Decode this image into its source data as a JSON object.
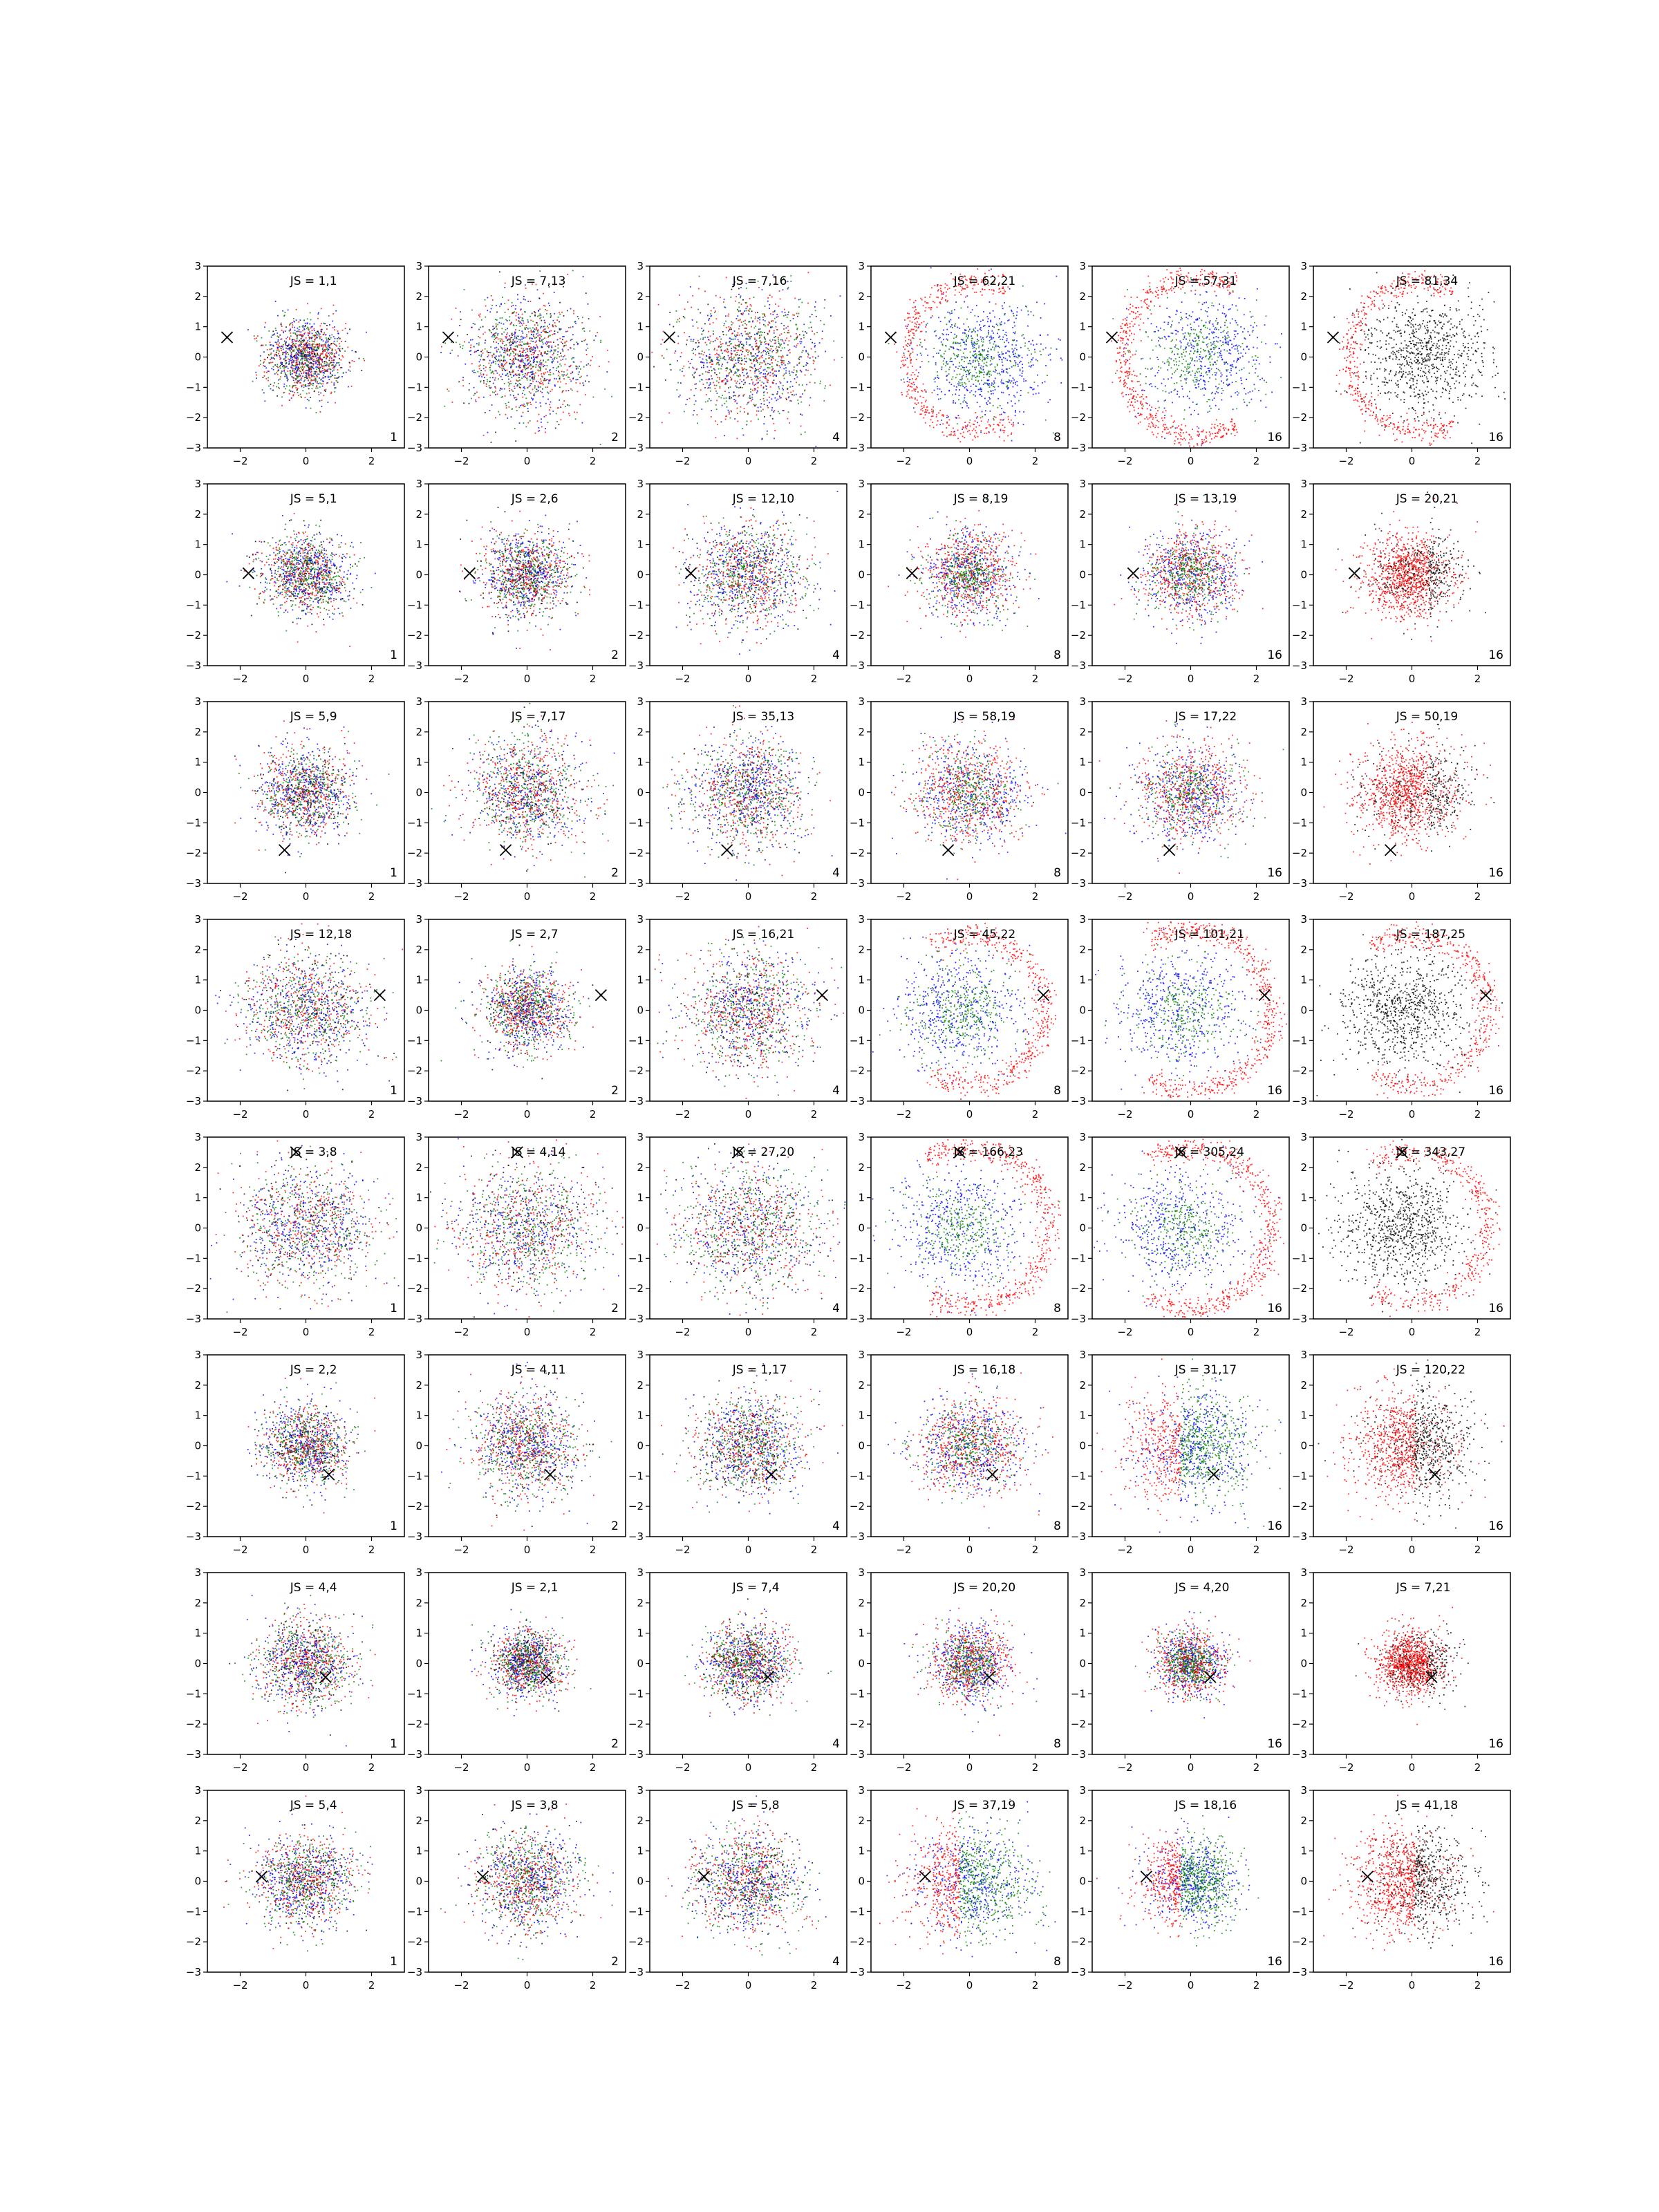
{
  "figure": {
    "rows": 8,
    "cols": 6,
    "colors": {
      "red": "#ff0000",
      "green": "#008000",
      "blue": "#0000ff",
      "black": "#000000",
      "marker": "#000000"
    }
  },
  "chart_data": {
    "type": "scatter",
    "axes_defaults": {
      "xlim": [
        -3,
        3
      ],
      "ylim": [
        -3,
        3
      ],
      "xticks": [
        -2,
        0,
        2
      ],
      "yticks": [
        -3,
        -2,
        -1,
        0,
        1,
        2,
        3
      ],
      "xtick_labels": [
        "−2",
        "0",
        "2"
      ],
      "ytick_labels": [
        "−3",
        "−2",
        "−1",
        "0",
        "1",
        "2",
        "3"
      ],
      "grid": false,
      "marker_symbol": "x"
    },
    "panels": [
      {
        "row": 1,
        "col": 1,
        "title": "JS = 1,1",
        "corner_label": "1",
        "marker": [
          -2.4,
          0.65
        ],
        "pattern": "mix3",
        "scale": 0.85
      },
      {
        "row": 1,
        "col": 2,
        "title": "JS = 7,13",
        "corner_label": "2",
        "marker": [
          -2.4,
          0.65
        ],
        "pattern": "mix3",
        "scale": 1.3
      },
      {
        "row": 1,
        "col": 3,
        "title": "JS = 7,16",
        "corner_label": "4",
        "marker": [
          -2.4,
          0.65
        ],
        "pattern": "mix3",
        "scale": 1.5
      },
      {
        "row": 1,
        "col": 4,
        "title": "JS = 62,21",
        "corner_label": "8",
        "marker": [
          -2.4,
          0.65
        ],
        "pattern": "crescent_rgb",
        "scale": 1.4
      },
      {
        "row": 1,
        "col": 5,
        "title": "JS = 57,31",
        "corner_label": "16",
        "marker": [
          -2.4,
          0.65
        ],
        "pattern": "crescent_rgb_strong",
        "scale": 1.4
      },
      {
        "row": 1,
        "col": 6,
        "title": "JS = 81,34",
        "corner_label": "16",
        "marker": [
          -2.4,
          0.65
        ],
        "pattern": "crescent_rk",
        "scale": 1.4
      },
      {
        "row": 2,
        "col": 1,
        "title": "JS = 5,1",
        "corner_label": "1",
        "marker": [
          -1.75,
          0.05
        ],
        "pattern": "mix3",
        "scale": 0.9
      },
      {
        "row": 2,
        "col": 2,
        "title": "JS = 2,6",
        "corner_label": "2",
        "marker": [
          -1.75,
          0.05
        ],
        "pattern": "mix3",
        "scale": 0.95
      },
      {
        "row": 2,
        "col": 3,
        "title": "JS = 12,10",
        "corner_label": "4",
        "marker": [
          -1.75,
          0.05
        ],
        "pattern": "mix3",
        "scale": 1.2
      },
      {
        "row": 2,
        "col": 4,
        "title": "JS = 8,19",
        "corner_label": "8",
        "marker": [
          -1.75,
          0.05
        ],
        "pattern": "blob_rgb",
        "scale": 1.0
      },
      {
        "row": 2,
        "col": 5,
        "title": "JS = 13,19",
        "corner_label": "16",
        "marker": [
          -1.75,
          0.05
        ],
        "pattern": "blob_rgb",
        "scale": 1.0
      },
      {
        "row": 2,
        "col": 6,
        "title": "JS = 20,21",
        "corner_label": "16",
        "marker": [
          -1.75,
          0.05
        ],
        "pattern": "blob_rk",
        "scale": 1.0
      },
      {
        "row": 3,
        "col": 1,
        "title": "JS = 5,9",
        "corner_label": "1",
        "marker": [
          -0.65,
          -1.9
        ],
        "pattern": "mix3",
        "scale": 1.0
      },
      {
        "row": 3,
        "col": 2,
        "title": "JS = 7,17",
        "corner_label": "2",
        "marker": [
          -0.65,
          -1.9
        ],
        "pattern": "mix3",
        "scale": 1.2
      },
      {
        "row": 3,
        "col": 3,
        "title": "JS = 35,13",
        "corner_label": "4",
        "marker": [
          -0.65,
          -1.9
        ],
        "pattern": "mix3",
        "scale": 1.25
      },
      {
        "row": 3,
        "col": 4,
        "title": "JS = 58,19",
        "corner_label": "8",
        "marker": [
          -0.65,
          -1.9
        ],
        "pattern": "blob_rgb",
        "scale": 1.2
      },
      {
        "row": 3,
        "col": 5,
        "title": "JS = 17,22",
        "corner_label": "16",
        "marker": [
          -0.65,
          -1.9
        ],
        "pattern": "blob_rgb",
        "scale": 1.1
      },
      {
        "row": 3,
        "col": 6,
        "title": "JS = 50,19",
        "corner_label": "16",
        "marker": [
          -0.65,
          -1.9
        ],
        "pattern": "blob_rk",
        "scale": 1.15
      },
      {
        "row": 4,
        "col": 1,
        "title": "JS = 12,18",
        "corner_label": "1",
        "marker": [
          2.25,
          0.5
        ],
        "pattern": "mix3",
        "scale": 1.3
      },
      {
        "row": 4,
        "col": 2,
        "title": "JS = 2,7",
        "corner_label": "2",
        "marker": [
          2.25,
          0.5
        ],
        "pattern": "mix3",
        "scale": 0.95
      },
      {
        "row": 4,
        "col": 3,
        "title": "JS = 16,21",
        "corner_label": "4",
        "marker": [
          2.25,
          0.5
        ],
        "pattern": "mix3",
        "scale": 1.35
      },
      {
        "row": 4,
        "col": 4,
        "title": "JS = 45,22",
        "corner_label": "8",
        "marker": [
          2.25,
          0.5
        ],
        "pattern": "crescentR_rgb",
        "scale": 1.4
      },
      {
        "row": 4,
        "col": 5,
        "title": "JS = 101,21",
        "corner_label": "16",
        "marker": [
          2.25,
          0.5
        ],
        "pattern": "crescentR_rgb_strong",
        "scale": 1.4
      },
      {
        "row": 4,
        "col": 6,
        "title": "JS = 187,25",
        "corner_label": "16",
        "marker": [
          2.25,
          0.5
        ],
        "pattern": "crescentR_rk",
        "scale": 1.4
      },
      {
        "row": 5,
        "col": 1,
        "title": "JS = 3,8",
        "corner_label": "1",
        "marker": [
          -0.3,
          2.5
        ],
        "pattern": "mix3",
        "scale": 1.4
      },
      {
        "row": 5,
        "col": 2,
        "title": "JS = 4,14",
        "corner_label": "2",
        "marker": [
          -0.3,
          2.5
        ],
        "pattern": "mix3",
        "scale": 1.5
      },
      {
        "row": 5,
        "col": 3,
        "title": "JS = 27,20",
        "corner_label": "4",
        "marker": [
          -0.3,
          2.5
        ],
        "pattern": "mix3",
        "scale": 1.5
      },
      {
        "row": 5,
        "col": 4,
        "title": "JS = 166,23",
        "corner_label": "8",
        "marker": [
          -0.3,
          2.5
        ],
        "pattern": "crescentR_rgb_strong",
        "scale": 1.45
      },
      {
        "row": 5,
        "col": 5,
        "title": "JS = 305,24",
        "corner_label": "16",
        "marker": [
          -0.3,
          2.5
        ],
        "pattern": "crescentR_rgb_strong",
        "scale": 1.45
      },
      {
        "row": 5,
        "col": 6,
        "title": "JS = 343,27",
        "corner_label": "16",
        "marker": [
          -0.3,
          2.5
        ],
        "pattern": "crescentR_rk",
        "scale": 1.45
      },
      {
        "row": 6,
        "col": 1,
        "title": "JS = 2,2",
        "corner_label": "1",
        "marker": [
          0.7,
          -0.95
        ],
        "pattern": "mix3",
        "scale": 0.9
      },
      {
        "row": 6,
        "col": 2,
        "title": "JS = 4,11",
        "corner_label": "2",
        "marker": [
          0.7,
          -0.95
        ],
        "pattern": "mix3",
        "scale": 1.15
      },
      {
        "row": 6,
        "col": 3,
        "title": "JS = 1,17",
        "corner_label": "4",
        "marker": [
          0.7,
          -0.95
        ],
        "pattern": "mix3",
        "scale": 1.1
      },
      {
        "row": 6,
        "col": 4,
        "title": "JS = 16,18",
        "corner_label": "8",
        "marker": [
          0.7,
          -0.95
        ],
        "pattern": "blob_rgb",
        "scale": 1.1
      },
      {
        "row": 6,
        "col": 5,
        "title": "JS = 31,17",
        "corner_label": "16",
        "marker": [
          0.7,
          -0.95
        ],
        "pattern": "left_rgb",
        "scale": 1.25
      },
      {
        "row": 6,
        "col": 6,
        "title": "JS = 120,22",
        "corner_label": "16",
        "marker": [
          0.7,
          -0.95
        ],
        "pattern": "left_rk",
        "scale": 1.2
      },
      {
        "row": 7,
        "col": 1,
        "title": "JS = 4,4",
        "corner_label": "1",
        "marker": [
          0.6,
          -0.45
        ],
        "pattern": "mix3",
        "scale": 1.0
      },
      {
        "row": 7,
        "col": 2,
        "title": "JS = 2,1",
        "corner_label": "2",
        "marker": [
          0.6,
          -0.45
        ],
        "pattern": "mix3",
        "scale": 0.75
      },
      {
        "row": 7,
        "col": 3,
        "title": "JS = 7,4",
        "corner_label": "4",
        "marker": [
          0.6,
          -0.45
        ],
        "pattern": "mix3",
        "scale": 0.9
      },
      {
        "row": 7,
        "col": 4,
        "title": "JS = 20,20",
        "corner_label": "8",
        "marker": [
          0.6,
          -0.45
        ],
        "pattern": "blob_rgb",
        "scale": 0.85
      },
      {
        "row": 7,
        "col": 5,
        "title": "JS = 4,20",
        "corner_label": "16",
        "marker": [
          0.6,
          -0.45
        ],
        "pattern": "blob_rgb",
        "scale": 0.75
      },
      {
        "row": 7,
        "col": 6,
        "title": "JS = 7,21",
        "corner_label": "16",
        "marker": [
          0.6,
          -0.45
        ],
        "pattern": "blob_rk",
        "scale": 0.75
      },
      {
        "row": 8,
        "col": 1,
        "title": "JS = 5,4",
        "corner_label": "1",
        "marker": [
          -1.35,
          0.15
        ],
        "pattern": "mix3",
        "scale": 1.05
      },
      {
        "row": 8,
        "col": 2,
        "title": "JS = 3,8",
        "corner_label": "2",
        "marker": [
          -1.35,
          0.15
        ],
        "pattern": "mix3",
        "scale": 1.1
      },
      {
        "row": 8,
        "col": 3,
        "title": "JS = 5,8",
        "corner_label": "4",
        "marker": [
          -1.35,
          0.15
        ],
        "pattern": "mix3",
        "scale": 1.15
      },
      {
        "row": 8,
        "col": 4,
        "title": "JS = 37,19",
        "corner_label": "8",
        "marker": [
          -1.35,
          0.15
        ],
        "pattern": "left_rgb",
        "scale": 1.2
      },
      {
        "row": 8,
        "col": 5,
        "title": "JS = 18,16",
        "corner_label": "16",
        "marker": [
          -1.35,
          0.15
        ],
        "pattern": "left_rgb",
        "scale": 0.95
      },
      {
        "row": 8,
        "col": 6,
        "title": "JS = 41,18",
        "corner_label": "16",
        "marker": [
          -1.35,
          0.15
        ],
        "pattern": "left_rk",
        "scale": 1.1
      }
    ]
  }
}
